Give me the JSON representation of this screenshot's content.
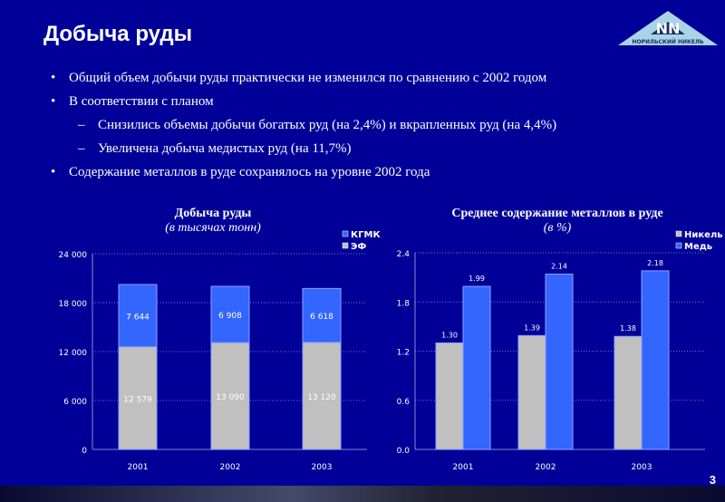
{
  "title": "Добыча руды",
  "logo_text": "НОРИЛЬСКИЙ НИКЕЛЬ",
  "bullets": [
    {
      "level": 1,
      "marker": "•",
      "text": "Общий объем добычи руды практически не изменился по сравнению с 2002 годом"
    },
    {
      "level": 1,
      "marker": "•",
      "text": "В соответствии с планом"
    },
    {
      "level": 2,
      "marker": "–",
      "text": "Снизились объемы добычи богатых руд (на 2,4%) и вкрапленных руд (на 4,4%)"
    },
    {
      "level": 2,
      "marker": "–",
      "text": "Увеличена добыча медистых руд (на 11,7%)"
    },
    {
      "level": 1,
      "marker": "•",
      "text": "Содержание металлов в руде сохранялось на уровне 2002 года"
    }
  ],
  "page_number": "3",
  "chart_data": [
    {
      "type": "bar",
      "stacked": true,
      "title": "Добыча руды",
      "subtitle": "(в тысячах тонн)",
      "categories": [
        "2001",
        "2002",
        "2003"
      ],
      "series": [
        {
          "name": "ЭФ",
          "color": "#c0c0c0",
          "values": [
            12579,
            13090,
            13120
          ],
          "labels": [
            "12 579",
            "13 090",
            "13 120"
          ]
        },
        {
          "name": "КГМК",
          "color": "#3366ff",
          "values": [
            7644,
            6908,
            6618
          ],
          "labels": [
            "7 644",
            "6 908",
            "6 618"
          ]
        }
      ],
      "ylim": [
        0,
        24000
      ],
      "yticks": [
        0,
        6000,
        12000,
        18000,
        24000
      ],
      "ytick_labels": [
        "0",
        "6 000",
        "12 000",
        "18 000",
        "24 000"
      ],
      "legend": "top-right"
    },
    {
      "type": "bar",
      "stacked": false,
      "title": "Среднее содержание металлов в руде",
      "subtitle": "(в %)",
      "categories": [
        "2001",
        "2002",
        "2003"
      ],
      "series": [
        {
          "name": "Никель",
          "color": "#c0c0c0",
          "values": [
            1.3,
            1.39,
            1.38
          ],
          "labels": [
            "1.30",
            "1.39",
            "1.38"
          ]
        },
        {
          "name": "Медь",
          "color": "#3366ff",
          "values": [
            1.99,
            2.14,
            2.18
          ],
          "labels": [
            "1.99",
            "2.14",
            "2.18"
          ]
        }
      ],
      "ylim": [
        0,
        2.4
      ],
      "yticks": [
        0,
        0.6,
        1.2,
        1.8,
        2.4
      ],
      "ytick_labels": [
        "0.0",
        "0.6",
        "1.2",
        "1.8",
        "2.4"
      ],
      "legend": "top-right"
    }
  ]
}
